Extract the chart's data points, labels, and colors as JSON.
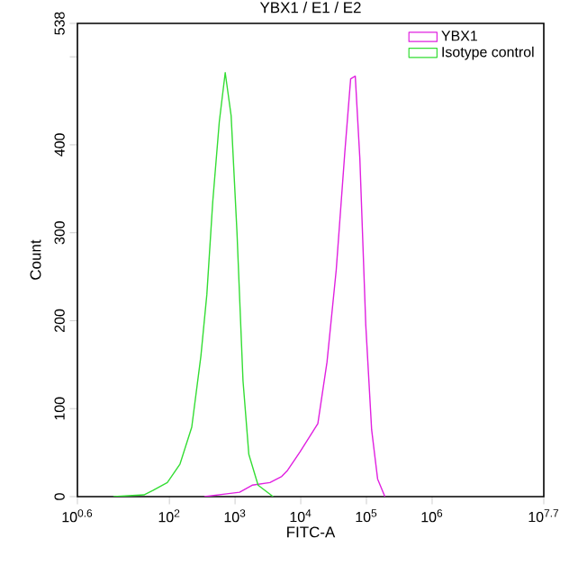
{
  "chart_data": {
    "type": "line",
    "title": "YBX1 / E1 / E2",
    "xlabel": "FITC-A",
    "ylabel": "Count",
    "log": "x",
    "legend": "top right",
    "xlim": [
      3.981,
      50118723
    ],
    "ylim": [
      0,
      538
    ],
    "xticks": [
      {
        "value": 3.981,
        "label": "10$^{0.6}$"
      },
      {
        "value": 100,
        "label": "10$^{2}$"
      },
      {
        "value": 1000,
        "label": "10$^{3}$"
      },
      {
        "value": 10000,
        "label": "10$^{4}$"
      },
      {
        "value": 100000,
        "label": "10$^{5}$"
      },
      {
        "value": 1000000,
        "label": "10$^{6}$"
      },
      {
        "value": 50118723,
        "label": "10$^{7.7}$"
      }
    ],
    "yticks": [
      0,
      100,
      200,
      300,
      400,
      {
        "value": 500,
        "label": null
      },
      538
    ],
    "series": [
      {
        "name": "YBX1",
        "color": "#e020e0",
        "x": [
          339,
          1170,
          1820,
          3390,
          5130,
          6310,
          9770,
          18200,
          25100,
          34700,
          46800,
          57500,
          67600,
          79400,
          97700,
          120000,
          148000,
          191000
        ],
        "values": [
          0,
          5,
          13,
          16,
          23,
          30,
          51,
          83,
          153,
          258,
          391,
          475,
          478,
          384,
          195,
          76,
          20,
          0
        ]
      },
      {
        "name": "Isotype control",
        "color": "#33dd33",
        "x": [
          14,
          41,
          56,
          93,
          145,
          219,
          302,
          372,
          457,
          575,
          708,
          871,
          1070,
          1320,
          1620,
          2240,
          3800
        ],
        "values": [
          0,
          2,
          7,
          16,
          37,
          79,
          160,
          230,
          335,
          426,
          482,
          433,
          300,
          132,
          48,
          13,
          0
        ]
      }
    ]
  }
}
